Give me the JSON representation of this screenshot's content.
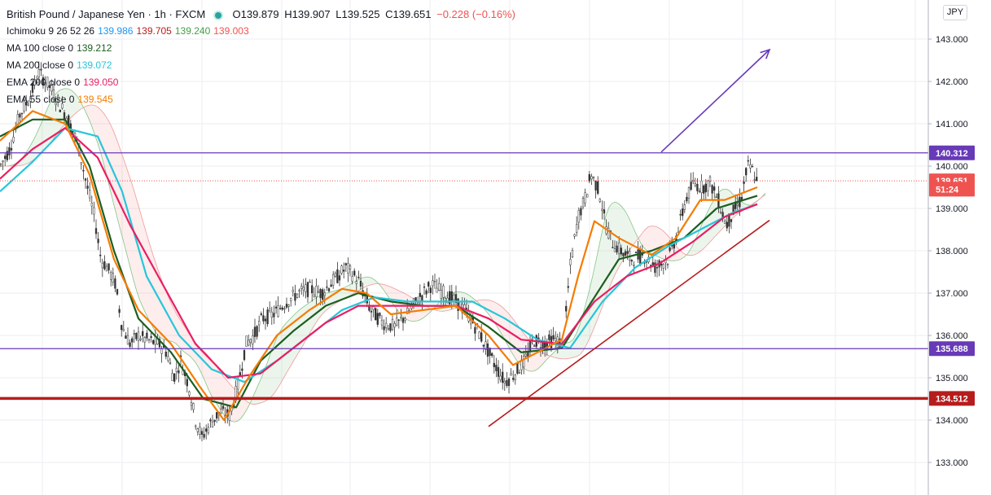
{
  "legend": {
    "title": "British Pound / Japanese Yen · 1h · FXCM",
    "ohlc": {
      "o": "O139.879",
      "h": "H139.907",
      "l": "L139.525",
      "c": "C139.651",
      "chg": "−0.228 (−0.16%)"
    },
    "indicators": [
      {
        "label": "Ichimoku 9 26 52 26",
        "values": [
          "139.986",
          "139.705",
          "139.240",
          "139.003"
        ],
        "colors": [
          "#2196f3",
          "#b71c1c",
          "#43a047",
          "#ef5350"
        ]
      },
      {
        "label": "MA 100 close 0",
        "values": [
          "139.212"
        ],
        "colors": [
          "#1b5e20"
        ]
      },
      {
        "label": "MA 200 close 0",
        "values": [
          "139.072"
        ],
        "colors": [
          "#26c6da"
        ]
      },
      {
        "label": "EMA 200 close 0",
        "values": [
          "139.050"
        ],
        "colors": [
          "#e91e63"
        ]
      },
      {
        "label": "EMA 55 close 0",
        "values": [
          "139.545"
        ],
        "colors": [
          "#f57c00"
        ]
      }
    ]
  },
  "currency_label": "JPY",
  "colors": {
    "up": "#26a69a",
    "down": "#ef5350",
    "candle": "#333333",
    "resistance": "#673ab7",
    "support": "#b71c1c",
    "grid": "#eceef2",
    "ma100": "#1b5e20",
    "ma200": "#26c6da",
    "ema200": "#e91e63",
    "ema55": "#f57c00"
  },
  "chart_data": {
    "type": "line",
    "title": "British Pound / Japanese Yen · 1h · FXCM",
    "yaxis": {
      "ticks": [
        "133.000",
        "134.000",
        "135.000",
        "136.000",
        "137.000",
        "138.000",
        "139.000",
        "140.000",
        "141.000",
        "142.000",
        "143.000"
      ],
      "range": [
        132.6,
        143.6
      ]
    },
    "price_labels": [
      {
        "value": 140.312,
        "text": "140.312",
        "color": "#673ab7"
      },
      {
        "value": 139.651,
        "text": "139.651",
        "color": "#ef5350"
      },
      {
        "value": 139.455,
        "text": "51:24",
        "color": "#ef5350"
      },
      {
        "value": 135.688,
        "text": "135.688",
        "color": "#673ab7"
      },
      {
        "value": 134.512,
        "text": "134.512",
        "color": "#b71c1c"
      }
    ],
    "horizontal_lines": [
      {
        "value": 140.312,
        "color": "#673ab7",
        "width": 1.3
      },
      {
        "value": 135.688,
        "color": "#673ab7",
        "width": 1.3
      },
      {
        "value": 134.512,
        "color": "#b71c1c",
        "width": 3.5
      }
    ],
    "current_price": 139.651,
    "price_path": [
      [
        0,
        140.0
      ],
      [
        12,
        140.4
      ],
      [
        24,
        141.2
      ],
      [
        36,
        141.6
      ],
      [
        48,
        142.2
      ],
      [
        60,
        141.9
      ],
      [
        72,
        141.5
      ],
      [
        84,
        141.1
      ],
      [
        96,
        140.5
      ],
      [
        106,
        139.6
      ],
      [
        116,
        138.8
      ],
      [
        124,
        137.8
      ],
      [
        132,
        137.6
      ],
      [
        142,
        137.2
      ],
      [
        150,
        136.2
      ],
      [
        160,
        135.8
      ],
      [
        170,
        136.0
      ],
      [
        180,
        135.9
      ],
      [
        195,
        135.8
      ],
      [
        205,
        135.6
      ],
      [
        213,
        135.0
      ],
      [
        222,
        135.4
      ],
      [
        232,
        134.8
      ],
      [
        240,
        134.0
      ],
      [
        248,
        133.6
      ],
      [
        258,
        133.9
      ],
      [
        270,
        134.2
      ],
      [
        282,
        134.1
      ],
      [
        292,
        134.8
      ],
      [
        302,
        135.8
      ],
      [
        312,
        136.0
      ],
      [
        322,
        136.4
      ],
      [
        336,
        136.5
      ],
      [
        352,
        136.8
      ],
      [
        366,
        137.0
      ],
      [
        380,
        137.1
      ],
      [
        395,
        137.0
      ],
      [
        410,
        137.3
      ],
      [
        425,
        137.6
      ],
      [
        440,
        137.3
      ],
      [
        455,
        136.6
      ],
      [
        470,
        136.3
      ],
      [
        485,
        136.2
      ],
      [
        500,
        136.5
      ],
      [
        515,
        136.9
      ],
      [
        530,
        137.2
      ],
      [
        545,
        137.0
      ],
      [
        560,
        136.8
      ],
      [
        575,
        136.5
      ],
      [
        590,
        136.0
      ],
      [
        605,
        135.4
      ],
      [
        620,
        134.9
      ],
      [
        632,
        135.1
      ],
      [
        645,
        135.4
      ],
      [
        655,
        135.9
      ],
      [
        668,
        135.8
      ],
      [
        680,
        135.9
      ],
      [
        692,
        135.8
      ],
      [
        700,
        137.6
      ],
      [
        710,
        138.8
      ],
      [
        718,
        139.2
      ],
      [
        726,
        139.8
      ],
      [
        736,
        139.4
      ],
      [
        744,
        138.6
      ],
      [
        752,
        138.2
      ],
      [
        762,
        138.0
      ],
      [
        775,
        137.8
      ],
      [
        790,
        137.9
      ],
      [
        805,
        137.6
      ],
      [
        820,
        137.8
      ],
      [
        832,
        138.4
      ],
      [
        842,
        139.2
      ],
      [
        852,
        139.6
      ],
      [
        862,
        139.5
      ],
      [
        872,
        139.6
      ],
      [
        882,
        139.2
      ],
      [
        892,
        138.6
      ],
      [
        900,
        138.9
      ],
      [
        910,
        139.2
      ],
      [
        918,
        140.0
      ],
      [
        924,
        139.9
      ],
      [
        930,
        139.651
      ]
    ],
    "ma_lines": [
      {
        "name": "MA 100",
        "color": "#1b5e20",
        "points": [
          [
            0,
            140.7
          ],
          [
            40,
            141.1
          ],
          [
            80,
            141.1
          ],
          [
            110,
            140.0
          ],
          [
            140,
            138.0
          ],
          [
            170,
            136.4
          ],
          [
            210,
            135.6
          ],
          [
            250,
            134.5
          ],
          [
            290,
            134.3
          ],
          [
            320,
            135.4
          ],
          [
            360,
            136.1
          ],
          [
            400,
            136.7
          ],
          [
            440,
            137.0
          ],
          [
            480,
            136.8
          ],
          [
            520,
            136.7
          ],
          [
            560,
            136.7
          ],
          [
            600,
            136.2
          ],
          [
            640,
            135.6
          ],
          [
            690,
            135.7
          ],
          [
            720,
            136.6
          ],
          [
            760,
            137.8
          ],
          [
            800,
            138.0
          ],
          [
            840,
            138.3
          ],
          [
            880,
            139.0
          ],
          [
            930,
            139.3
          ]
        ]
      },
      {
        "name": "MA 200",
        "color": "#26c6da",
        "points": [
          [
            0,
            139.4
          ],
          [
            40,
            140.1
          ],
          [
            80,
            140.9
          ],
          [
            120,
            140.7
          ],
          [
            150,
            139.4
          ],
          [
            180,
            137.4
          ],
          [
            220,
            136.0
          ],
          [
            260,
            135.2
          ],
          [
            300,
            134.9
          ],
          [
            340,
            135.4
          ],
          [
            380,
            136.0
          ],
          [
            420,
            136.6
          ],
          [
            460,
            136.9
          ],
          [
            500,
            136.8
          ],
          [
            540,
            136.8
          ],
          [
            580,
            136.8
          ],
          [
            620,
            136.4
          ],
          [
            660,
            135.9
          ],
          [
            700,
            135.7
          ],
          [
            740,
            136.8
          ],
          [
            780,
            137.6
          ],
          [
            820,
            138.1
          ],
          [
            860,
            138.5
          ],
          [
            900,
            138.9
          ],
          [
            930,
            139.1
          ]
        ]
      },
      {
        "name": "EMA 200",
        "color": "#e91e63",
        "points": [
          [
            0,
            139.7
          ],
          [
            40,
            140.4
          ],
          [
            80,
            140.9
          ],
          [
            120,
            140.2
          ],
          [
            160,
            138.6
          ],
          [
            200,
            137.2
          ],
          [
            240,
            135.8
          ],
          [
            280,
            135.0
          ],
          [
            320,
            135.1
          ],
          [
            360,
            135.7
          ],
          [
            400,
            136.3
          ],
          [
            440,
            136.7
          ],
          [
            480,
            136.7
          ],
          [
            520,
            136.7
          ],
          [
            560,
            136.7
          ],
          [
            600,
            136.4
          ],
          [
            640,
            135.9
          ],
          [
            690,
            135.8
          ],
          [
            730,
            136.8
          ],
          [
            770,
            137.4
          ],
          [
            810,
            137.7
          ],
          [
            850,
            138.2
          ],
          [
            890,
            138.8
          ],
          [
            930,
            139.1
          ]
        ]
      },
      {
        "name": "EMA 55",
        "color": "#f57c00",
        "points": [
          [
            0,
            140.6
          ],
          [
            40,
            141.3
          ],
          [
            80,
            141.0
          ],
          [
            110,
            139.8
          ],
          [
            140,
            137.8
          ],
          [
            170,
            136.6
          ],
          [
            210,
            135.8
          ],
          [
            245,
            134.8
          ],
          [
            275,
            134.0
          ],
          [
            305,
            135.0
          ],
          [
            340,
            136.0
          ],
          [
            380,
            136.6
          ],
          [
            420,
            137.1
          ],
          [
            450,
            137.0
          ],
          [
            480,
            136.5
          ],
          [
            520,
            136.6
          ],
          [
            560,
            136.7
          ],
          [
            600,
            136.0
          ],
          [
            630,
            135.3
          ],
          [
            660,
            135.6
          ],
          [
            690,
            135.9
          ],
          [
            710,
            137.4
          ],
          [
            730,
            138.7
          ],
          [
            760,
            138.3
          ],
          [
            800,
            137.9
          ],
          [
            830,
            138.3
          ],
          [
            860,
            139.2
          ],
          [
            890,
            139.2
          ],
          [
            930,
            139.5
          ]
        ]
      }
    ],
    "trendline": {
      "from": [
        600,
        133.85
      ],
      "to": [
        945,
        138.72
      ],
      "color": "#b71c1c"
    },
    "arrow": {
      "from": [
        812,
        140.33
      ],
      "to": [
        945,
        142.75
      ],
      "color": "#673ab7"
    }
  }
}
